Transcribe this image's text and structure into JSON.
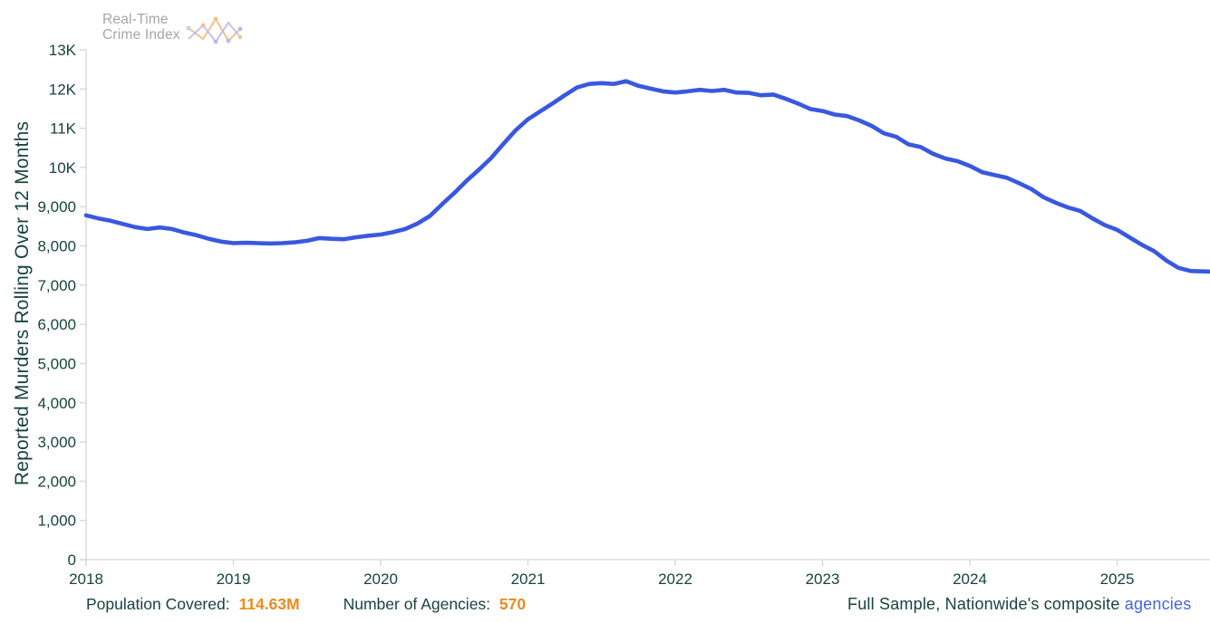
{
  "logo": {
    "line1": "Real-Time",
    "line2": "Crime Index",
    "icon": "sparkline-logo-icon"
  },
  "chart_data": {
    "type": "line",
    "title": "",
    "xlabel": "",
    "ylabel": "Reported Murders Rolling Over 12 Months",
    "x_range": [
      2018,
      2025.63
    ],
    "y_range": [
      0,
      13000
    ],
    "grid": false,
    "legend": "none",
    "x_ticks": [
      {
        "value": 2018,
        "label": "2018"
      },
      {
        "value": 2019,
        "label": "2019"
      },
      {
        "value": 2020,
        "label": "2020"
      },
      {
        "value": 2021,
        "label": "2021"
      },
      {
        "value": 2022,
        "label": "2022"
      },
      {
        "value": 2023,
        "label": "2023"
      },
      {
        "value": 2024,
        "label": "2024"
      },
      {
        "value": 2025,
        "label": "2025"
      }
    ],
    "y_ticks": [
      {
        "value": 0,
        "label": "0"
      },
      {
        "value": 1000,
        "label": "1,000"
      },
      {
        "value": 2000,
        "label": "2,000"
      },
      {
        "value": 3000,
        "label": "3,000"
      },
      {
        "value": 4000,
        "label": "4,000"
      },
      {
        "value": 5000,
        "label": "5,000"
      },
      {
        "value": 6000,
        "label": "6,000"
      },
      {
        "value": 7000,
        "label": "7,000"
      },
      {
        "value": 8000,
        "label": "8,000"
      },
      {
        "value": 9000,
        "label": "9,000"
      },
      {
        "value": 10000,
        "label": "10K"
      },
      {
        "value": 11000,
        "label": "11K"
      },
      {
        "value": 12000,
        "label": "12K"
      },
      {
        "value": 13000,
        "label": "13K"
      }
    ],
    "series": [
      {
        "name": "Reported Murders Rolling Over 12 Months",
        "color": "#3a58de",
        "x_start": "2018-01",
        "x_interval": "monthly",
        "values": [
          8780,
          8700,
          8640,
          8560,
          8480,
          8430,
          8470,
          8430,
          8340,
          8270,
          8180,
          8110,
          8070,
          8080,
          8070,
          8060,
          8070,
          8090,
          8130,
          8200,
          8180,
          8170,
          8220,
          8260,
          8290,
          8350,
          8430,
          8570,
          8760,
          9060,
          9350,
          9660,
          9940,
          10240,
          10600,
          10950,
          11230,
          11430,
          11630,
          11840,
          12040,
          12130,
          12150,
          12130,
          12200,
          12080,
          12010,
          11940,
          11910,
          11940,
          11980,
          11950,
          11980,
          11910,
          11900,
          11840,
          11860,
          11750,
          11630,
          11490,
          11440,
          11350,
          11310,
          11200,
          11060,
          10870,
          10780,
          10590,
          10520,
          10350,
          10230,
          10160,
          10040,
          9880,
          9810,
          9740,
          9600,
          9450,
          9240,
          9100,
          8980,
          8890,
          8700,
          8530,
          8410,
          8220,
          8030,
          7870,
          7630,
          7440,
          7360,
          7350,
          7340
        ]
      }
    ]
  },
  "footer": {
    "population_label": "Population Covered:",
    "population_value": "114.63M",
    "agencies_label": "Number of Agencies:",
    "agencies_value": "570",
    "sample_text": "Full Sample, Nationwide's composite ",
    "sample_link_text": "agencies"
  },
  "colors": {
    "line_blue": "#3a58de",
    "text_teal": "#17443c",
    "accent_orange": "#ee8a1f",
    "link_blue": "#4365e2",
    "axis_gray": "#d6d6d6",
    "logo_gray": "#9aa0a0",
    "logo_orange": "#f2a95e",
    "logo_violet": "#9aa0ec"
  }
}
